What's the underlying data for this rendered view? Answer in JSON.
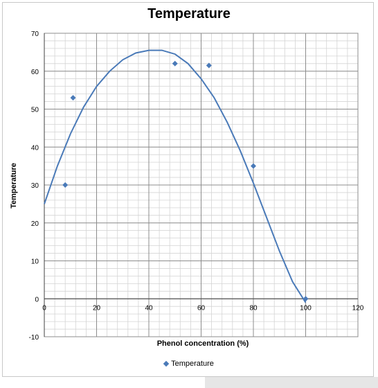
{
  "chart_data": {
    "type": "scatter",
    "title": "Temperature",
    "xlabel": "Phenol concentration (%)",
    "ylabel": "Temperature",
    "xlim": [
      0,
      120
    ],
    "ylim": [
      -10,
      70
    ],
    "xticks": [
      "0",
      "20",
      "40",
      "60",
      "80",
      "100",
      "120"
    ],
    "yticks": [
      "-10",
      "0",
      "10",
      "20",
      "30",
      "40",
      "50",
      "60",
      "70"
    ],
    "grid": true,
    "legend_position": "bottom",
    "series": [
      {
        "name": "Temperature",
        "color": "#4a7ab8",
        "marker": "diamond",
        "points": [
          {
            "x": 8,
            "y": 30
          },
          {
            "x": 11,
            "y": 53
          },
          {
            "x": 50,
            "y": 62
          },
          {
            "x": 63,
            "y": 61.5
          },
          {
            "x": 80,
            "y": 35
          },
          {
            "x": 100,
            "y": 0
          }
        ]
      }
    ],
    "trendline": {
      "type": "polynomial",
      "color": "#4a7ab8",
      "points": [
        {
          "x": 0,
          "y": 25
        },
        {
          "x": 5,
          "y": 35
        },
        {
          "x": 10,
          "y": 43.5
        },
        {
          "x": 15,
          "y": 50.5
        },
        {
          "x": 20,
          "y": 56
        },
        {
          "x": 25,
          "y": 60
        },
        {
          "x": 30,
          "y": 63
        },
        {
          "x": 35,
          "y": 64.8
        },
        {
          "x": 40,
          "y": 65.5
        },
        {
          "x": 45,
          "y": 65.5
        },
        {
          "x": 50,
          "y": 64.5
        },
        {
          "x": 55,
          "y": 62
        },
        {
          "x": 60,
          "y": 58
        },
        {
          "x": 65,
          "y": 53
        },
        {
          "x": 70,
          "y": 46.5
        },
        {
          "x": 75,
          "y": 39
        },
        {
          "x": 80,
          "y": 30.5
        },
        {
          "x": 85,
          "y": 21.5
        },
        {
          "x": 90,
          "y": 12.5
        },
        {
          "x": 95,
          "y": 4.5
        },
        {
          "x": 100,
          "y": -1
        }
      ]
    }
  }
}
